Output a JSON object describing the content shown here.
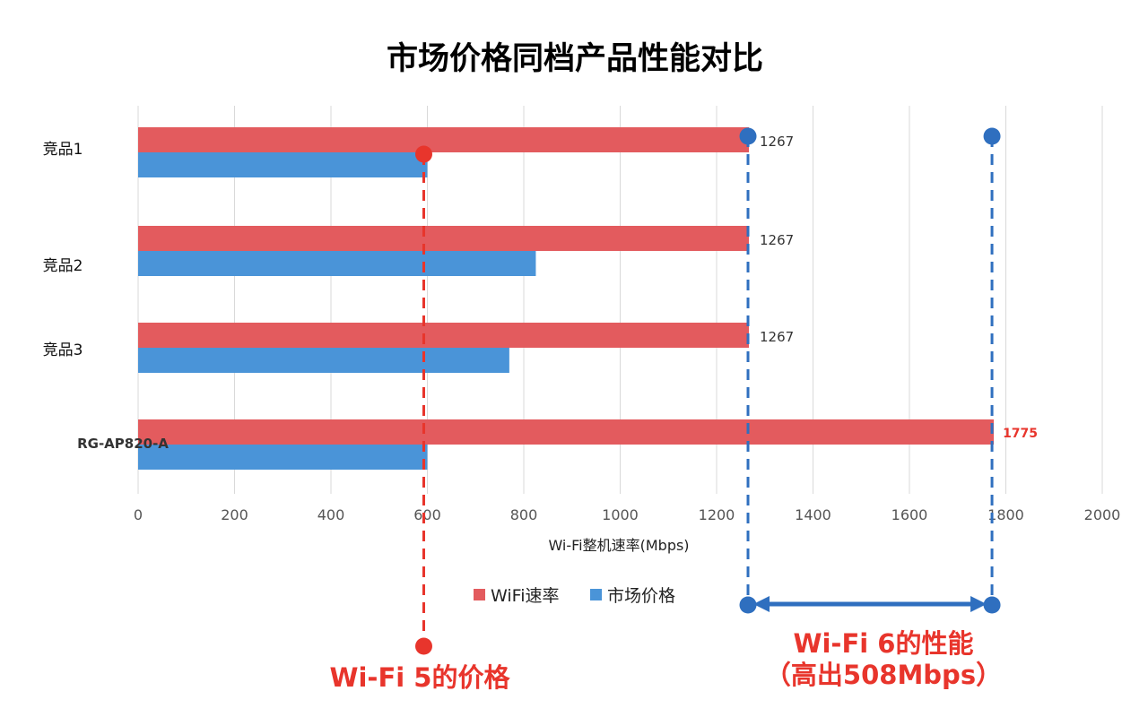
{
  "chart_data": {
    "type": "bar",
    "orientation": "horizontal",
    "title": "市场价格同档产品性能对比",
    "xlabel": "Wi-Fi整机速率(Mbps)",
    "ylabel": "",
    "xlim": [
      0,
      2000
    ],
    "x_ticks": [
      "0",
      "200",
      "400",
      "600",
      "800",
      "1000",
      "1200",
      "1400",
      "1600",
      "1800",
      "2000"
    ],
    "x_tick_values": [
      0,
      200,
      400,
      600,
      800,
      1000,
      1200,
      1400,
      1600,
      1800,
      2000
    ],
    "grid": true,
    "legend_position": "bottom",
    "categories": [
      "竞品1",
      "竞品2",
      "竞品3",
      "RG-AP820-A"
    ],
    "series": [
      {
        "name": "WiFi速率",
        "color": "#e35b5e",
        "values": [
          1267,
          1267,
          1267,
          1775
        ],
        "data_labels": [
          "1267",
          "1267",
          "1267",
          "1775"
        ]
      },
      {
        "name": "市场价格",
        "color": "#4a94d8",
        "values": [
          600,
          825,
          770,
          600
        ]
      }
    ],
    "annotations": {
      "price_line": {
        "value": 600,
        "color": "#e8352c",
        "text": "Wi-Fi 5的价格"
      },
      "perf_lines": {
        "values": [
          1267,
          1775
        ],
        "color": "#2f6fbf",
        "text_line1": "Wi-Fi 6的性能",
        "text_line2": "（高出508Mbps）"
      }
    }
  }
}
